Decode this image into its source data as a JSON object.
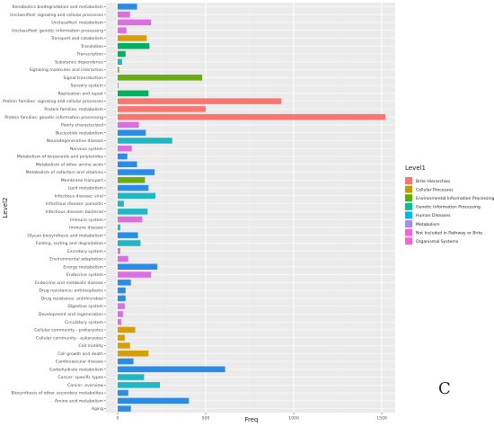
{
  "chart_data": {
    "type": "bar",
    "orientation": "horizontal",
    "xlabel": "Freq",
    "ylabel": "Level2",
    "xlim": [
      -30,
      1560
    ],
    "xticks": [
      0,
      500,
      1000,
      1500
    ],
    "grid": true,
    "legend_title": "Level1",
    "legend_placement": "right",
    "groups": [
      {
        "name": "Brite Hierarchies",
        "color": "#F8766D"
      },
      {
        "name": "Cellular Processes",
        "color": "#C49A00"
      },
      {
        "name": "Environmental Information Processing",
        "color": "#53B400"
      },
      {
        "name": "Genetic Information Processing",
        "color": "#00C094"
      },
      {
        "name": "Human Diseases",
        "color": "#00B6EB"
      },
      {
        "name": "Metabolism",
        "color": "#A58AFF"
      },
      {
        "name": "Not Included in Pathway or Brite",
        "color": "#FB61D7"
      },
      {
        "name": "Organismal Systems",
        "color": "#FB61D7"
      }
    ],
    "bars": [
      {
        "category": "Xenobiotics biodegradation and metabolism",
        "value": 110,
        "level1": "Metabolism",
        "color": "#2B8CE8"
      },
      {
        "category": "Unclassified: signaling and cellular processes",
        "value": 70,
        "level1": "Not Included in Pathway or Brite",
        "color": "#DC6FE0"
      },
      {
        "category": "Unclassified: metabolism",
        "value": 190,
        "level1": "Not Included in Pathway or Brite",
        "color": "#DC6FE0"
      },
      {
        "category": "Unclassified: genetic information processing",
        "value": 50,
        "level1": "Not Included in Pathway or Brite",
        "color": "#DC6FE0"
      },
      {
        "category": "Transport and catabolism",
        "value": 165,
        "level1": "Cellular Processes",
        "color": "#D89E08"
      },
      {
        "category": "Translation",
        "value": 180,
        "level1": "Genetic Information Processing",
        "color": "#00B061"
      },
      {
        "category": "Transcription",
        "value": 45,
        "level1": "Genetic Information Processing",
        "color": "#00B061"
      },
      {
        "category": "Substance dependence",
        "value": 25,
        "level1": "Human Diseases",
        "color": "#1EB8C4"
      },
      {
        "category": "Signaling molecules and interaction",
        "value": 8,
        "level1": "Environmental Information Processing",
        "color": "#7CAE00"
      },
      {
        "category": "Signal transduction",
        "value": 480,
        "level1": "Environmental Information Processing",
        "color": "#6BAA10"
      },
      {
        "category": "Sensory system",
        "value": 5,
        "level1": "Organismal Systems",
        "color": "#DC6FE0"
      },
      {
        "category": "Replication and repair",
        "value": 175,
        "level1": "Genetic Information Processing",
        "color": "#00B061"
      },
      {
        "category": "Protein families: signaling and cellular processes",
        "value": 930,
        "level1": "Brite Hierarchies",
        "color": "#F8766D"
      },
      {
        "category": "Protein families: metabolism",
        "value": 500,
        "level1": "Brite Hierarchies",
        "color": "#F8766D"
      },
      {
        "category": "Protein families: genetic information processing",
        "value": 1520,
        "level1": "Brite Hierarchies",
        "color": "#F8766D"
      },
      {
        "category": "Poorly characterized",
        "value": 120,
        "level1": "Not Included in Pathway or Brite",
        "color": "#DC6FE0"
      },
      {
        "category": "Nucleotide metabolism",
        "value": 160,
        "level1": "Metabolism",
        "color": "#2B8CE8"
      },
      {
        "category": "Neurodegenerative disease",
        "value": 310,
        "level1": "Human Diseases",
        "color": "#1EB8C4"
      },
      {
        "category": "Nervous system",
        "value": 80,
        "level1": "Organismal Systems",
        "color": "#DC6FE0"
      },
      {
        "category": "Metabolism of terpenoids and polyketides",
        "value": 55,
        "level1": "Metabolism",
        "color": "#2B8CE8"
      },
      {
        "category": "Metabolism of other amino acids",
        "value": 110,
        "level1": "Metabolism",
        "color": "#2B8CE8"
      },
      {
        "category": "Metabolism of cofactors and vitamins",
        "value": 210,
        "level1": "Metabolism",
        "color": "#2B8CE8"
      },
      {
        "category": "Membrane transport",
        "value": 155,
        "level1": "Environmental Information Processing",
        "color": "#6BAA10"
      },
      {
        "category": "Lipid metabolism",
        "value": 175,
        "level1": "Metabolism",
        "color": "#2B8CE8"
      },
      {
        "category": "Infectious disease: viral",
        "value": 215,
        "level1": "Human Diseases",
        "color": "#1EB8C4"
      },
      {
        "category": "Infectious disease: parasitic",
        "value": 35,
        "level1": "Human Diseases",
        "color": "#1EB8C4"
      },
      {
        "category": "Infectious disease: bacterial",
        "value": 170,
        "level1": "Human Diseases",
        "color": "#1EB8C4"
      },
      {
        "category": "Immune system",
        "value": 140,
        "level1": "Organismal Systems",
        "color": "#DC6FE0"
      },
      {
        "category": "Immune disease",
        "value": 15,
        "level1": "Human Diseases",
        "color": "#1EB8C4"
      },
      {
        "category": "Glycan biosynthesis and metabolism",
        "value": 115,
        "level1": "Metabolism",
        "color": "#2B8CE8"
      },
      {
        "category": "Folding, sorting and degradation",
        "value": 130,
        "level1": "Genetic Information Processing",
        "color": "#1EB8C4"
      },
      {
        "category": "Excretory system",
        "value": 15,
        "level1": "Organismal Systems",
        "color": "#DC6FE0"
      },
      {
        "category": "Environmental adaptation",
        "value": 60,
        "level1": "Organismal Systems",
        "color": "#DC6FE0"
      },
      {
        "category": "Energy metabolism",
        "value": 225,
        "level1": "Metabolism",
        "color": "#2B8CE8"
      },
      {
        "category": "Endocrine system",
        "value": 190,
        "level1": "Organismal Systems",
        "color": "#DC6FE0"
      },
      {
        "category": "Endocrine and metabolic disease",
        "value": 75,
        "level1": "Human Diseases",
        "color": "#2B8CE8"
      },
      {
        "category": "Drug resistance: antineoplastic",
        "value": 45,
        "level1": "Human Diseases",
        "color": "#2B8CE8"
      },
      {
        "category": "Drug resistance: antimicrobial",
        "value": 45,
        "level1": "Human Diseases",
        "color": "#2B8CE8"
      },
      {
        "category": "Digestive system",
        "value": 40,
        "level1": "Organismal Systems",
        "color": "#DC6FE0"
      },
      {
        "category": "Development and regeneration",
        "value": 30,
        "level1": "Organismal Systems",
        "color": "#DC6FE0"
      },
      {
        "category": "Circulatory system",
        "value": 20,
        "level1": "Organismal Systems",
        "color": "#DC6FE0"
      },
      {
        "category": "Cellular community - prokaryotes",
        "value": 100,
        "level1": "Cellular Processes",
        "color": "#D89E08"
      },
      {
        "category": "Cellular community - eukaryotes",
        "value": 40,
        "level1": "Cellular Processes",
        "color": "#D89E08"
      },
      {
        "category": "Cell motility",
        "value": 70,
        "level1": "Cellular Processes",
        "color": "#D89E08"
      },
      {
        "category": "Cell growth and death",
        "value": 175,
        "level1": "Cellular Processes",
        "color": "#D89E08"
      },
      {
        "category": "Cardiovascular disease",
        "value": 90,
        "level1": "Human Diseases",
        "color": "#2B8CE8"
      },
      {
        "category": "Carbohydrate metabolism",
        "value": 610,
        "level1": "Metabolism",
        "color": "#2B8CE8"
      },
      {
        "category": "Cancer: specific types",
        "value": 150,
        "level1": "Human Diseases",
        "color": "#1EB8C4"
      },
      {
        "category": "Cancer: overview",
        "value": 240,
        "level1": "Human Diseases",
        "color": "#1EB8C4"
      },
      {
        "category": "Biosynthesis of other secondary metabolites",
        "value": 60,
        "level1": "Metabolism",
        "color": "#2B8CE8"
      },
      {
        "category": "Amino acid metabolism",
        "value": 405,
        "level1": "Metabolism",
        "color": "#2B8CE8"
      },
      {
        "category": "Aging",
        "value": 75,
        "level1": "Organismal Systems",
        "color": "#2B8CE8"
      }
    ]
  },
  "corner_mark": "C"
}
